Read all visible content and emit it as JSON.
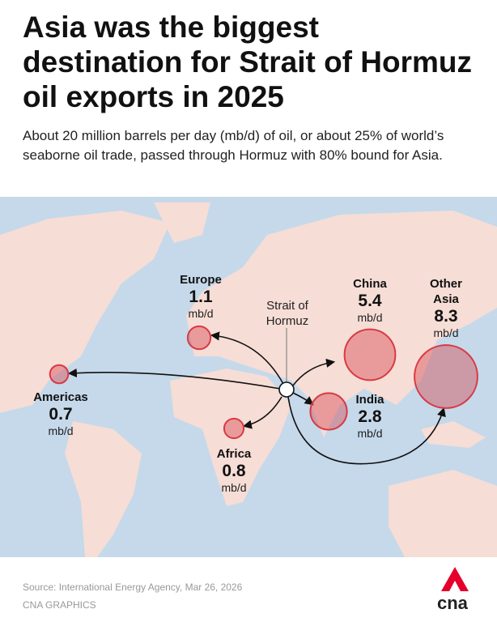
{
  "title": "Asia was the biggest destination for Strait of Hormuz oil exports in 2025",
  "subtitle": "About 20 million barrels per day (mb/d) of oil, or about 25% of world’s seaborne oil trade, passed through Hormuz with 80% bound for Asia.",
  "chart_data": {
    "type": "bubble-map",
    "unit": "mb/d",
    "hub_label": "Strait of Hormuz",
    "categories": [
      "Europe",
      "Americas",
      "Africa",
      "China",
      "India",
      "Other Asia"
    ],
    "values": [
      1.1,
      0.7,
      0.8,
      5.4,
      2.8,
      8.3
    ],
    "color": "#d83a44"
  },
  "footer": {
    "source": "Source: International Energy Agency, Mar 26, 2026",
    "credit": "CNA GRAPHICS"
  },
  "logo": "cna"
}
